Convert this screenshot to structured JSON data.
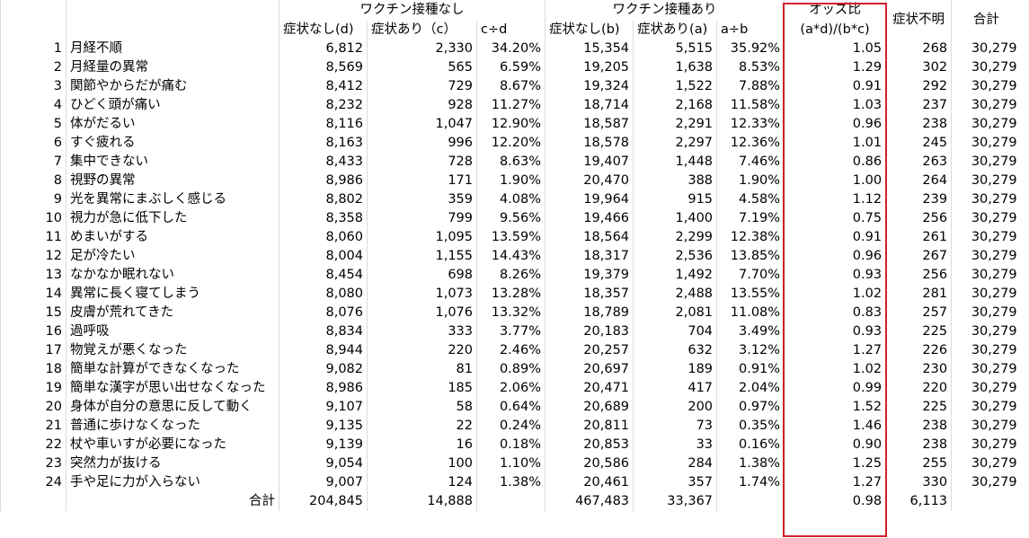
{
  "header": {
    "group_no_vaccine": "ワクチン接種なし",
    "group_vaccine": "ワクチン接種あり",
    "odds_title": "オッズ比",
    "unknown": "症状不明",
    "total": "合計",
    "sub": [
      "症状なし(d)",
      "症状あり（c）",
      "c÷d",
      "症状なし(b)",
      "症状あり(a)",
      "a÷b",
      "(a*d)/(b*c)"
    ]
  },
  "table": {
    "rows": [
      [
        "1",
        "月経不順",
        "6,812",
        "2,330",
        "34.20%",
        "15,354",
        "5,515",
        "35.92%",
        "1.05",
        "268",
        "30,279"
      ],
      [
        "2",
        "月経量の異常",
        "8,569",
        "565",
        "6.59%",
        "19,205",
        "1,638",
        "8.53%",
        "1.29",
        "302",
        "30,279"
      ],
      [
        "3",
        "関節やからだが痛む",
        "8,412",
        "729",
        "8.67%",
        "19,324",
        "1,522",
        "7.88%",
        "0.91",
        "292",
        "30,279"
      ],
      [
        "4",
        "ひどく頭が痛い",
        "8,232",
        "928",
        "11.27%",
        "18,714",
        "2,168",
        "11.58%",
        "1.03",
        "237",
        "30,279"
      ],
      [
        "5",
        "体がだるい",
        "8,116",
        "1,047",
        "12.90%",
        "18,587",
        "2,291",
        "12.33%",
        "0.96",
        "238",
        "30,279"
      ],
      [
        "6",
        "すぐ疲れる",
        "8,163",
        "996",
        "12.20%",
        "18,578",
        "2,297",
        "12.36%",
        "1.01",
        "245",
        "30,279"
      ],
      [
        "7",
        "集中できない",
        "8,433",
        "728",
        "8.63%",
        "19,407",
        "1,448",
        "7.46%",
        "0.86",
        "263",
        "30,279"
      ],
      [
        "8",
        "視野の異常",
        "8,986",
        "171",
        "1.90%",
        "20,470",
        "388",
        "1.90%",
        "1.00",
        "264",
        "30,279"
      ],
      [
        "9",
        "光を異常にまぶしく感じる",
        "8,802",
        "359",
        "4.08%",
        "19,964",
        "915",
        "4.58%",
        "1.12",
        "239",
        "30,279"
      ],
      [
        "10",
        "視力が急に低下した",
        "8,358",
        "799",
        "9.56%",
        "19,466",
        "1,400",
        "7.19%",
        "0.75",
        "256",
        "30,279"
      ],
      [
        "11",
        "めまいがする",
        "8,060",
        "1,095",
        "13.59%",
        "18,564",
        "2,299",
        "12.38%",
        "0.91",
        "261",
        "30,279"
      ],
      [
        "12",
        "足が冷たい",
        "8,004",
        "1,155",
        "14.43%",
        "18,317",
        "2,536",
        "13.85%",
        "0.96",
        "267",
        "30,279"
      ],
      [
        "13",
        "なかなか眠れない",
        "8,454",
        "698",
        "8.26%",
        "19,379",
        "1,492",
        "7.70%",
        "0.93",
        "256",
        "30,279"
      ],
      [
        "14",
        "異常に長く寝てしまう",
        "8,080",
        "1,073",
        "13.28%",
        "18,357",
        "2,488",
        "13.55%",
        "1.02",
        "281",
        "30,279"
      ],
      [
        "15",
        "皮膚が荒れてきた",
        "8,076",
        "1,076",
        "13.32%",
        "18,789",
        "2,081",
        "11.08%",
        "0.83",
        "257",
        "30,279"
      ],
      [
        "16",
        "過呼吸",
        "8,834",
        "333",
        "3.77%",
        "20,183",
        "704",
        "3.49%",
        "0.93",
        "225",
        "30,279"
      ],
      [
        "17",
        "物覚えが悪くなった",
        "8,944",
        "220",
        "2.46%",
        "20,257",
        "632",
        "3.12%",
        "1.27",
        "226",
        "30,279"
      ],
      [
        "18",
        "簡単な計算ができなくなった",
        "9,082",
        "81",
        "0.89%",
        "20,697",
        "189",
        "0.91%",
        "1.02",
        "230",
        "30,279"
      ],
      [
        "19",
        "簡単な漢字が思い出せなくなった",
        "8,986",
        "185",
        "2.06%",
        "20,471",
        "417",
        "2.04%",
        "0.99",
        "220",
        "30,279"
      ],
      [
        "20",
        "身体が自分の意思に反して動く",
        "9,107",
        "58",
        "0.64%",
        "20,689",
        "200",
        "0.97%",
        "1.52",
        "225",
        "30,279"
      ],
      [
        "21",
        "普通に歩けなくなった",
        "9,135",
        "22",
        "0.24%",
        "20,811",
        "73",
        "0.35%",
        "1.46",
        "238",
        "30,279"
      ],
      [
        "22",
        "杖や車いすが必要になった",
        "9,139",
        "16",
        "0.18%",
        "20,853",
        "33",
        "0.16%",
        "0.90",
        "238",
        "30,279"
      ],
      [
        "23",
        "突然力が抜ける",
        "9,054",
        "100",
        "1.10%",
        "20,586",
        "284",
        "1.38%",
        "1.25",
        "255",
        "30,279"
      ],
      [
        "24",
        "手や足に力が入らない",
        "9,007",
        "124",
        "1.38%",
        "20,461",
        "357",
        "1.74%",
        "1.27",
        "330",
        "30,279"
      ]
    ],
    "total_row": {
      "label": "合計",
      "d": "204,845",
      "c": "14,888",
      "b": "467,483",
      "a": "33,367",
      "odds": "0.98",
      "unknown": "6,113"
    }
  }
}
